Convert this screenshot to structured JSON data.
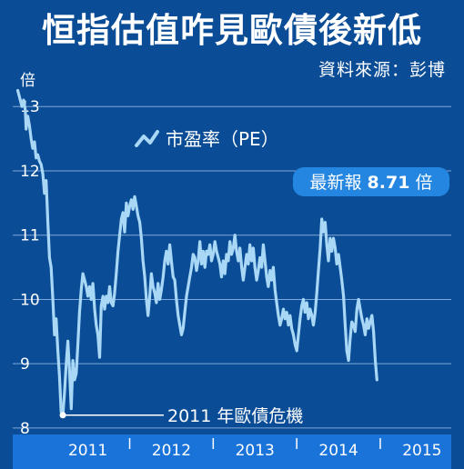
{
  "title": "恒指估值咋見歐債後新低",
  "source": "資料來源：彭博",
  "chart_data": {
    "type": "line",
    "ylabel": "倍",
    "ylim": [
      7.9,
      13.3
    ],
    "yticks": [
      8,
      9,
      10,
      11,
      12,
      13
    ],
    "xlim": [
      2010.6,
      2015.85
    ],
    "xticks": [
      "2011",
      "2012",
      "2013",
      "2014",
      "2015"
    ],
    "grid": true,
    "legend": "top-left",
    "series": [
      {
        "name": "市盈率（PE）",
        "points": [
          [
            2010.66,
            13.25
          ],
          [
            2010.69,
            13.1
          ],
          [
            2010.71,
            13.0
          ],
          [
            2010.73,
            13.1
          ],
          [
            2010.75,
            12.95
          ],
          [
            2010.76,
            12.65
          ],
          [
            2010.78,
            12.85
          ],
          [
            2010.8,
            12.7
          ],
          [
            2010.82,
            12.5
          ],
          [
            2010.84,
            12.35
          ],
          [
            2010.86,
            12.45
          ],
          [
            2010.88,
            12.2
          ],
          [
            2010.9,
            12.25
          ],
          [
            2010.92,
            12.15
          ],
          [
            2010.94,
            12.1
          ],
          [
            2010.96,
            11.95
          ],
          [
            2010.98,
            11.65
          ],
          [
            2011.0,
            11.85
          ],
          [
            2011.02,
            11.2
          ],
          [
            2011.04,
            10.65
          ],
          [
            2011.06,
            10.5
          ],
          [
            2011.08,
            10.0
          ],
          [
            2011.1,
            9.45
          ],
          [
            2011.12,
            9.7
          ],
          [
            2011.14,
            9.2
          ],
          [
            2011.16,
            8.8
          ],
          [
            2011.18,
            8.25
          ],
          [
            2011.2,
            8.2
          ],
          [
            2011.22,
            8.55
          ],
          [
            2011.24,
            9.0
          ],
          [
            2011.26,
            9.35
          ],
          [
            2011.28,
            8.9
          ],
          [
            2011.3,
            8.3
          ],
          [
            2011.32,
            9.05
          ],
          [
            2011.34,
            8.75
          ],
          [
            2011.36,
            8.85
          ],
          [
            2011.38,
            9.3
          ],
          [
            2011.4,
            9.8
          ],
          [
            2011.42,
            10.15
          ],
          [
            2011.44,
            10.4
          ],
          [
            2011.46,
            10.3
          ],
          [
            2011.48,
            10.2
          ],
          [
            2011.5,
            10.05
          ],
          [
            2011.52,
            10.2
          ],
          [
            2011.54,
            10.0
          ],
          [
            2011.56,
            10.25
          ],
          [
            2011.58,
            9.85
          ],
          [
            2011.6,
            9.6
          ],
          [
            2011.62,
            9.45
          ],
          [
            2011.64,
            9.1
          ],
          [
            2011.66,
            9.9
          ],
          [
            2011.68,
            10.05
          ],
          [
            2011.7,
            9.85
          ],
          [
            2011.72,
            10.05
          ],
          [
            2011.74,
            9.95
          ],
          [
            2011.76,
            10.2
          ],
          [
            2011.78,
            9.95
          ],
          [
            2011.8,
            9.9
          ],
          [
            2011.82,
            10.1
          ],
          [
            2011.84,
            10.4
          ],
          [
            2011.86,
            10.75
          ],
          [
            2011.88,
            11.0
          ],
          [
            2011.9,
            11.25
          ],
          [
            2011.92,
            11.35
          ],
          [
            2011.94,
            11.05
          ],
          [
            2011.96,
            11.5
          ],
          [
            2011.98,
            11.3
          ],
          [
            2012.0,
            11.45
          ],
          [
            2012.02,
            11.55
          ],
          [
            2012.04,
            11.4
          ],
          [
            2012.06,
            11.6
          ],
          [
            2012.08,
            11.45
          ],
          [
            2012.1,
            11.3
          ],
          [
            2012.12,
            11.2
          ],
          [
            2012.14,
            10.95
          ],
          [
            2012.16,
            10.6
          ],
          [
            2012.18,
            10.35
          ],
          [
            2012.2,
            10.0
          ],
          [
            2012.22,
            9.75
          ],
          [
            2012.24,
            10.05
          ],
          [
            2012.26,
            10.4
          ],
          [
            2012.28,
            10.2
          ],
          [
            2012.3,
            10.1
          ],
          [
            2012.32,
            9.95
          ],
          [
            2012.34,
            10.25
          ],
          [
            2012.36,
            10.0
          ],
          [
            2012.38,
            10.15
          ],
          [
            2012.4,
            10.35
          ],
          [
            2012.42,
            10.6
          ],
          [
            2012.44,
            10.75
          ],
          [
            2012.46,
            10.55
          ],
          [
            2012.48,
            10.85
          ],
          [
            2012.5,
            10.6
          ],
          [
            2012.52,
            10.35
          ],
          [
            2012.54,
            10.3
          ],
          [
            2012.56,
            10.0
          ],
          [
            2012.58,
            9.75
          ],
          [
            2012.6,
            9.6
          ],
          [
            2012.62,
            9.45
          ],
          [
            2012.64,
            9.55
          ],
          [
            2012.66,
            9.8
          ],
          [
            2012.68,
            10.05
          ],
          [
            2012.7,
            10.2
          ],
          [
            2012.72,
            10.35
          ],
          [
            2012.74,
            10.5
          ],
          [
            2012.76,
            10.7
          ],
          [
            2012.78,
            10.65
          ],
          [
            2012.8,
            10.45
          ],
          [
            2012.82,
            10.6
          ],
          [
            2012.84,
            10.9
          ],
          [
            2012.86,
            10.55
          ],
          [
            2012.88,
            10.75
          ],
          [
            2012.9,
            10.5
          ],
          [
            2012.92,
            10.75
          ],
          [
            2012.94,
            10.7
          ],
          [
            2012.96,
            10.85
          ],
          [
            2012.98,
            10.6
          ],
          [
            2013.0,
            10.7
          ],
          [
            2013.02,
            10.9
          ],
          [
            2013.04,
            10.75
          ],
          [
            2013.06,
            10.65
          ],
          [
            2013.08,
            10.55
          ],
          [
            2013.1,
            10.35
          ],
          [
            2013.12,
            10.6
          ],
          [
            2013.14,
            10.4
          ],
          [
            2013.16,
            10.7
          ],
          [
            2013.18,
            10.6
          ],
          [
            2013.2,
            10.9
          ],
          [
            2013.22,
            10.7
          ],
          [
            2013.24,
            10.8
          ],
          [
            2013.26,
            11.0
          ],
          [
            2013.28,
            10.75
          ],
          [
            2013.3,
            10.6
          ],
          [
            2013.32,
            10.8
          ],
          [
            2013.34,
            10.5
          ],
          [
            2013.36,
            10.3
          ],
          [
            2013.38,
            10.5
          ],
          [
            2013.4,
            10.7
          ],
          [
            2013.42,
            10.55
          ],
          [
            2013.44,
            10.85
          ],
          [
            2013.46,
            10.6
          ],
          [
            2013.48,
            10.8
          ],
          [
            2013.5,
            10.5
          ],
          [
            2013.52,
            10.3
          ],
          [
            2013.54,
            10.45
          ],
          [
            2013.56,
            10.65
          ],
          [
            2013.58,
            10.5
          ],
          [
            2013.6,
            10.85
          ],
          [
            2013.62,
            10.6
          ],
          [
            2013.64,
            10.35
          ],
          [
            2013.66,
            10.2
          ],
          [
            2013.68,
            10.45
          ],
          [
            2013.7,
            10.3
          ],
          [
            2013.72,
            10.5
          ],
          [
            2013.74,
            10.15
          ],
          [
            2013.76,
            9.95
          ],
          [
            2013.78,
            9.75
          ],
          [
            2013.8,
            9.6
          ],
          [
            2013.82,
            9.7
          ],
          [
            2013.84,
            9.85
          ],
          [
            2013.86,
            9.7
          ],
          [
            2013.88,
            9.8
          ],
          [
            2013.9,
            9.6
          ],
          [
            2013.92,
            9.75
          ],
          [
            2013.94,
            9.55
          ],
          [
            2013.96,
            9.45
          ],
          [
            2013.98,
            9.3
          ],
          [
            2014.0,
            9.2
          ],
          [
            2014.02,
            9.45
          ],
          [
            2014.04,
            9.7
          ],
          [
            2014.06,
            9.9
          ],
          [
            2014.08,
            10.0
          ],
          [
            2014.1,
            9.8
          ],
          [
            2014.12,
            9.95
          ],
          [
            2014.14,
            9.7
          ],
          [
            2014.16,
            9.85
          ],
          [
            2014.18,
            9.75
          ],
          [
            2014.2,
            9.6
          ],
          [
            2014.22,
            9.8
          ],
          [
            2014.24,
            10.1
          ],
          [
            2014.26,
            10.45
          ],
          [
            2014.28,
            10.8
          ],
          [
            2014.3,
            11.25
          ],
          [
            2014.32,
            11.05
          ],
          [
            2014.34,
            11.2
          ],
          [
            2014.36,
            10.85
          ],
          [
            2014.38,
            10.6
          ],
          [
            2014.4,
            10.95
          ],
          [
            2014.42,
            10.75
          ],
          [
            2014.44,
            10.95
          ],
          [
            2014.46,
            10.8
          ],
          [
            2014.48,
            10.55
          ],
          [
            2014.5,
            10.7
          ],
          [
            2014.52,
            10.5
          ],
          [
            2014.54,
            10.3
          ],
          [
            2014.56,
            10.05
          ],
          [
            2014.58,
            9.6
          ],
          [
            2014.6,
            9.2
          ],
          [
            2014.62,
            9.05
          ],
          [
            2014.64,
            9.4
          ],
          [
            2014.66,
            9.65
          ],
          [
            2014.68,
            9.6
          ],
          [
            2014.7,
            9.5
          ],
          [
            2014.72,
            9.85
          ],
          [
            2014.74,
            10.0
          ],
          [
            2014.76,
            9.85
          ],
          [
            2014.78,
            9.7
          ],
          [
            2014.8,
            9.6
          ],
          [
            2014.82,
            9.45
          ],
          [
            2014.84,
            9.7
          ],
          [
            2014.86,
            9.55
          ],
          [
            2014.88,
            9.65
          ],
          [
            2014.9,
            9.75
          ],
          [
            2014.92,
            9.5
          ],
          [
            2014.94,
            9.05
          ],
          [
            2014.96,
            8.75
          ]
        ]
      }
    ],
    "annotations": [
      {
        "text": "2011 年歐債危機",
        "x": 2011.2,
        "y": 8.2
      },
      {
        "text": "最新報",
        "value": "8.71",
        "unit": "倍"
      }
    ]
  },
  "colors": {
    "background": "#0a4d96",
    "line": "#a8d8f5",
    "grid": "#7fa8d8",
    "axis_bar": "#1a73d9",
    "badge": "#2486e0"
  }
}
